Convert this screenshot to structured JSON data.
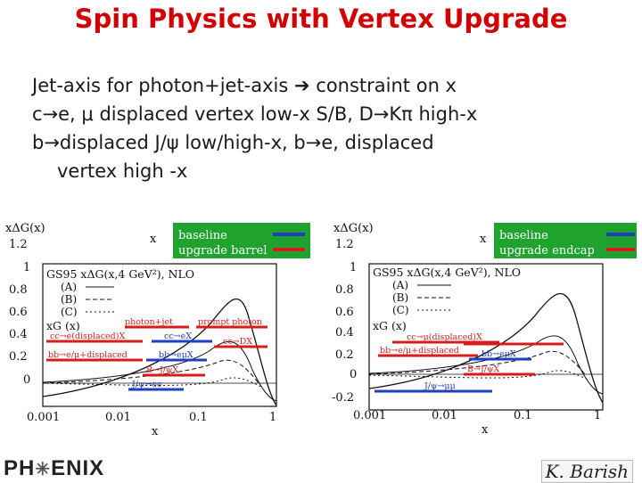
{
  "title": "Spin Physics with Vertex Upgrade",
  "bullets": [
    "Jet-axis for photon+jet-axis ➔ constraint on x",
    "c→e, μ displaced vertex low-x S/B, D→Kπ high-x",
    "b→displaced J/ψ low/high-x, b→e, displaced",
    "vertex high -x"
  ],
  "left_plot": {
    "ylabel": "xΔG(x)",
    "legend": [
      "baseline",
      "upgrade barrel"
    ],
    "x_marker": "x",
    "model": "GS95  xΔG(x,4 GeV²), NLO",
    "curves": [
      "(A)",
      "(B)",
      "(C)"
    ],
    "xg": "xG (x)",
    "yticks": [
      "1.2",
      "1",
      "0.8",
      "0.6",
      "0.4",
      "0.2",
      "0"
    ],
    "xticks": [
      "0.001",
      "0.01",
      "0.1",
      "1"
    ],
    "xaxis": "x",
    "bands": [
      "photon+jet",
      "prompt photon",
      "cc→e(displaced)X",
      "cc→eX",
      "cc→DX",
      "bb→e/μ+displaced",
      "bb→eμX",
      "B→J/ψX",
      "J/ψ→ee"
    ]
  },
  "right_plot": {
    "ylabel": "xΔG(x)",
    "legend": [
      "baseline",
      "upgrade endcap"
    ],
    "x_marker": "x",
    "model": "GS95  xΔG(x,4 GeV²), NLO",
    "curves": [
      "(A)",
      "(B)",
      "(C)"
    ],
    "xg": "xG (x)",
    "yticks": [
      "1.2",
      "1",
      "0.8",
      "0.6",
      "0.4",
      "0.2",
      "0",
      "-0.2"
    ],
    "xticks": [
      "0.001",
      "0.01",
      "0.1",
      "1"
    ],
    "xaxis": "x",
    "bands": [
      "cc→μ(displaced)X",
      "bb→e/μ+displaced",
      "bb→eμX",
      "B→J/ψX",
      "J/ψ→μμ"
    ]
  },
  "colors": {
    "title": "#d20000",
    "legend_bg": "#1fa22e",
    "baseline": "#1f3fbf",
    "upgrade": "#d61d1d"
  },
  "footer": {
    "logo_left": "PH",
    "logo_right": "ENIX",
    "author": "K. Barish"
  }
}
